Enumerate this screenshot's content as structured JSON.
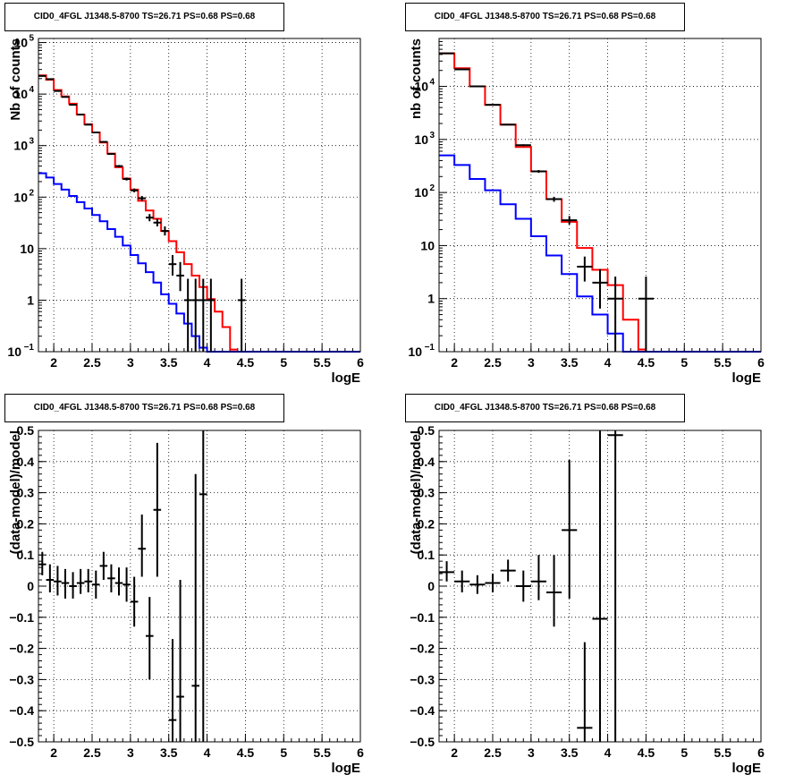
{
  "chart_data": [
    {
      "type": "line",
      "title": "CID0_4FGL J1348.5-8700 TS=26.71 PS=0.68 PS=0.68",
      "xlabel": "logE",
      "ylabel": "Nb of counts",
      "log_y": true,
      "xlim": [
        1.8,
        6.0
      ],
      "ylim": [
        0.1,
        120000
      ],
      "grid": true,
      "xticks": [
        "2",
        "2.5",
        "3",
        "3.5",
        "4",
        "4.5",
        "5",
        "5.5",
        "6"
      ],
      "yticks": [
        {
          "v": 0.1,
          "l": "10",
          "e": "−1"
        },
        {
          "v": 1,
          "l": "1"
        },
        {
          "v": 10,
          "l": "10"
        },
        {
          "v": 100,
          "l": "10",
          "e": "2"
        },
        {
          "v": 1000,
          "l": "10",
          "e": "3"
        },
        {
          "v": 10000,
          "l": "10",
          "e": "4"
        },
        {
          "v": 100000,
          "l": "10",
          "e": "5"
        }
      ],
      "series": [
        {
          "color": "#ff0000",
          "bin_edges": [
            1.8,
            1.9,
            2.0,
            2.1,
            2.2,
            2.3,
            2.4,
            2.5,
            2.6,
            2.7,
            2.8,
            2.9,
            3.0,
            3.1,
            3.2,
            3.3,
            3.4,
            3.5,
            3.6,
            3.7,
            3.8,
            3.9,
            4.0,
            4.1,
            4.2,
            4.3,
            4.4
          ],
          "values": [
            23000,
            19000,
            12000,
            9000,
            6500,
            4000,
            2600,
            1800,
            1150,
            700,
            380,
            230,
            140,
            85,
            55,
            38,
            22,
            14,
            8.5,
            5,
            3,
            1.8,
            1.05,
            0.6,
            0.3,
            0.11
          ]
        },
        {
          "color": "#0000ff",
          "bin_edges": [
            1.8,
            1.9,
            2.0,
            2.1,
            2.2,
            2.3,
            2.4,
            2.5,
            2.6,
            2.7,
            2.8,
            2.9,
            3.0,
            3.1,
            3.2,
            3.3,
            3.4,
            3.5,
            3.6,
            3.7,
            3.8,
            3.9,
            4.0,
            4.1,
            4.2,
            4.3,
            4.4,
            4.5,
            5.0,
            6.0
          ],
          "values": [
            290,
            240,
            180,
            140,
            105,
            80,
            60,
            45,
            34,
            24,
            17,
            11.5,
            7.5,
            5.2,
            3.5,
            2.2,
            1.3,
            0.85,
            0.55,
            0.35,
            0.2,
            0.12,
            0.09,
            0.09,
            0.09,
            0.09,
            0.09,
            0.09,
            0.09
          ]
        },
        {
          "color": "#000000",
          "type": "errorbar",
          "x": [
            1.85,
            1.95,
            2.05,
            2.15,
            2.25,
            2.35,
            2.45,
            2.55,
            2.65,
            2.75,
            2.85,
            2.95,
            3.05,
            3.15,
            3.25,
            3.35,
            3.45,
            3.55,
            3.65,
            3.75,
            3.85,
            3.95,
            4.05,
            4.45
          ],
          "y": [
            22500,
            19500,
            11500,
            8800,
            6200,
            4000,
            2550,
            1800,
            1180,
            690,
            400,
            225,
            135,
            95,
            40,
            32,
            22,
            5,
            3,
            1,
            1,
            1,
            1,
            1
          ],
          "xerr": 0.05,
          "ylo": [
            22300,
            19300,
            11400,
            8700,
            6100,
            3950,
            2500,
            1750,
            1140,
            665,
            380,
            210,
            124,
            85,
            34,
            27,
            18,
            3,
            1.5,
            0.1,
            0.1,
            0.1,
            0.1,
            0.1
          ],
          "yhi": [
            22700,
            19700,
            11600,
            8900,
            6300,
            4050,
            2600,
            1850,
            1220,
            715,
            420,
            240,
            147,
            105,
            47,
            38,
            27,
            7.5,
            5.5,
            2.6,
            2.6,
            2.6,
            2.6,
            2.6
          ]
        }
      ]
    },
    {
      "type": "line",
      "title": "CID0_4FGL J1348.5-8700 TS=26.71 PS=0.68 PS=0.68",
      "xlabel": "logE",
      "ylabel": "nb of counts",
      "log_y": true,
      "xlim": [
        1.8,
        6.0
      ],
      "ylim": [
        0.1,
        80000
      ],
      "grid": true,
      "xticks": [
        "2",
        "2.5",
        "3",
        "3.5",
        "4",
        "4.5",
        "5",
        "5.5",
        "6"
      ],
      "yticks": [
        {
          "v": 0.1,
          "l": "10",
          "e": "−1"
        },
        {
          "v": 1,
          "l": "1"
        },
        {
          "v": 10,
          "l": "10"
        },
        {
          "v": 100,
          "l": "10",
          "e": "2"
        },
        {
          "v": 1000,
          "l": "10",
          "e": "3"
        },
        {
          "v": 10000,
          "l": "10",
          "e": "4"
        }
      ],
      "series": [
        {
          "color": "#ff0000",
          "bin_edges": [
            1.8,
            2.0,
            2.2,
            2.4,
            2.6,
            2.8,
            3.0,
            3.2,
            3.4,
            3.6,
            3.8,
            4.0,
            4.2,
            4.4,
            4.5
          ],
          "values": [
            42000,
            22000,
            10000,
            4500,
            1900,
            720,
            250,
            75,
            28,
            9,
            3.5,
            1.8,
            0.4,
            0.11
          ]
        },
        {
          "color": "#0000ff",
          "bin_edges": [
            1.8,
            2.0,
            2.2,
            2.4,
            2.6,
            2.8,
            3.0,
            3.2,
            3.4,
            3.6,
            3.8,
            4.0,
            4.2,
            4.4,
            5.0,
            6.0
          ],
          "values": [
            500,
            330,
            180,
            110,
            60,
            32,
            15,
            6.5,
            2.9,
            1.1,
            0.5,
            0.22,
            0.1,
            0.1,
            0.1
          ]
        },
        {
          "color": "#000000",
          "type": "errorbar",
          "x": [
            1.9,
            2.1,
            2.3,
            2.5,
            2.7,
            2.9,
            3.1,
            3.3,
            3.5,
            3.7,
            3.9,
            4.1,
            4.5
          ],
          "y": [
            42000,
            21000,
            10000,
            4500,
            1900,
            780,
            250,
            75,
            30,
            4,
            2,
            1,
            1
          ],
          "xerr": 0.1,
          "ylo": [
            41700,
            20800,
            9900,
            4430,
            1860,
            750,
            235,
            67,
            25,
            2.1,
            0.65,
            0.1,
            0.1
          ],
          "yhi": [
            42300,
            21200,
            10100,
            4570,
            1940,
            810,
            265,
            83,
            36,
            6.2,
            3.6,
            2.6,
            2.6
          ]
        }
      ]
    },
    {
      "type": "scatter",
      "title": "CID0_4FGL J1348.5-8700 TS=26.71 PS=0.68 PS=0.68",
      "xlabel": "logE",
      "ylabel": "(data-model)/model",
      "log_y": false,
      "xlim": [
        1.8,
        6.0
      ],
      "ylim": [
        -0.5,
        0.5
      ],
      "grid": true,
      "xticks": [
        "2",
        "2.5",
        "3",
        "3.5",
        "4",
        "4.5",
        "5",
        "5.5",
        "6"
      ],
      "yticks": [
        {
          "v": -0.5,
          "l": "−0.5"
        },
        {
          "v": -0.4,
          "l": "−0.4"
        },
        {
          "v": -0.3,
          "l": "−0.3"
        },
        {
          "v": -0.2,
          "l": "−0.2"
        },
        {
          "v": -0.1,
          "l": "−0.1"
        },
        {
          "v": 0,
          "l": "0"
        },
        {
          "v": 0.1,
          "l": "0.1"
        },
        {
          "v": 0.2,
          "l": "0.2"
        },
        {
          "v": 0.3,
          "l": "0.3"
        },
        {
          "v": 0.4,
          "l": "0.4"
        },
        {
          "v": 0.5,
          "l": "0.5"
        }
      ],
      "series": [
        {
          "color": "#000000",
          "type": "errorbar",
          "x": [
            1.85,
            1.95,
            2.05,
            2.15,
            2.25,
            2.35,
            2.45,
            2.55,
            2.65,
            2.75,
            2.85,
            2.95,
            3.05,
            3.15,
            3.25,
            3.35,
            3.55,
            3.65,
            3.85,
            3.95
          ],
          "y": [
            0.07,
            0.02,
            0.015,
            0.01,
            0.0,
            0.01,
            0.015,
            0.005,
            0.065,
            0.025,
            0.01,
            0.005,
            -0.05,
            0.12,
            -0.16,
            0.245,
            -0.43,
            -0.355,
            -0.32,
            0.295
          ],
          "xerr": 0.05,
          "ylo": [
            0.035,
            -0.02,
            -0.03,
            -0.04,
            -0.04,
            -0.025,
            -0.02,
            -0.04,
            0.02,
            -0.02,
            -0.03,
            -0.05,
            -0.13,
            0.03,
            -0.3,
            0.03,
            -0.5,
            -0.5,
            -0.5,
            -0.5
          ],
          "yhi": [
            0.11,
            0.07,
            0.065,
            0.055,
            0.045,
            0.055,
            0.055,
            0.05,
            0.11,
            0.07,
            0.06,
            0.06,
            0.03,
            0.23,
            -0.035,
            0.46,
            -0.17,
            0.02,
            0.36,
            0.5
          ]
        }
      ]
    },
    {
      "type": "scatter",
      "title": "CID0_4FGL J1348.5-8700 TS=26.71 PS=0.68 PS=0.68",
      "xlabel": "logE",
      "ylabel": "(data-model)/model",
      "log_y": false,
      "xlim": [
        1.8,
        6.0
      ],
      "ylim": [
        -0.5,
        0.5
      ],
      "grid": true,
      "xticks": [
        "2",
        "2.5",
        "3",
        "3.5",
        "4",
        "4.5",
        "5",
        "5.5",
        "6"
      ],
      "yticks": [
        {
          "v": -0.5,
          "l": "−0.5"
        },
        {
          "v": -0.4,
          "l": "−0.4"
        },
        {
          "v": -0.3,
          "l": "−0.3"
        },
        {
          "v": -0.2,
          "l": "−0.2"
        },
        {
          "v": -0.1,
          "l": "−0.1"
        },
        {
          "v": 0,
          "l": "0"
        },
        {
          "v": 0.1,
          "l": "0.1"
        },
        {
          "v": 0.2,
          "l": "0.2"
        },
        {
          "v": 0.3,
          "l": "0.3"
        },
        {
          "v": 0.4,
          "l": "0.4"
        },
        {
          "v": 0.5,
          "l": "0.5"
        }
      ],
      "series": [
        {
          "color": "#000000",
          "type": "errorbar",
          "x": [
            1.9,
            2.1,
            2.3,
            2.5,
            2.7,
            2.9,
            3.1,
            3.3,
            3.5,
            3.7,
            3.9,
            4.1
          ],
          "y": [
            0.045,
            0.015,
            0.005,
            0.01,
            0.05,
            0.0,
            0.015,
            -0.02,
            0.18,
            -0.455,
            -0.105,
            0.485
          ],
          "xerr": 0.1,
          "ylo": [
            0.015,
            -0.02,
            -0.025,
            -0.02,
            0.015,
            -0.05,
            -0.045,
            -0.13,
            -0.04,
            -0.5,
            -0.5,
            -0.5
          ],
          "yhi": [
            0.08,
            0.05,
            0.035,
            0.04,
            0.085,
            0.05,
            0.1,
            0.1,
            0.405,
            -0.18,
            0.5,
            0.5
          ]
        }
      ]
    }
  ]
}
